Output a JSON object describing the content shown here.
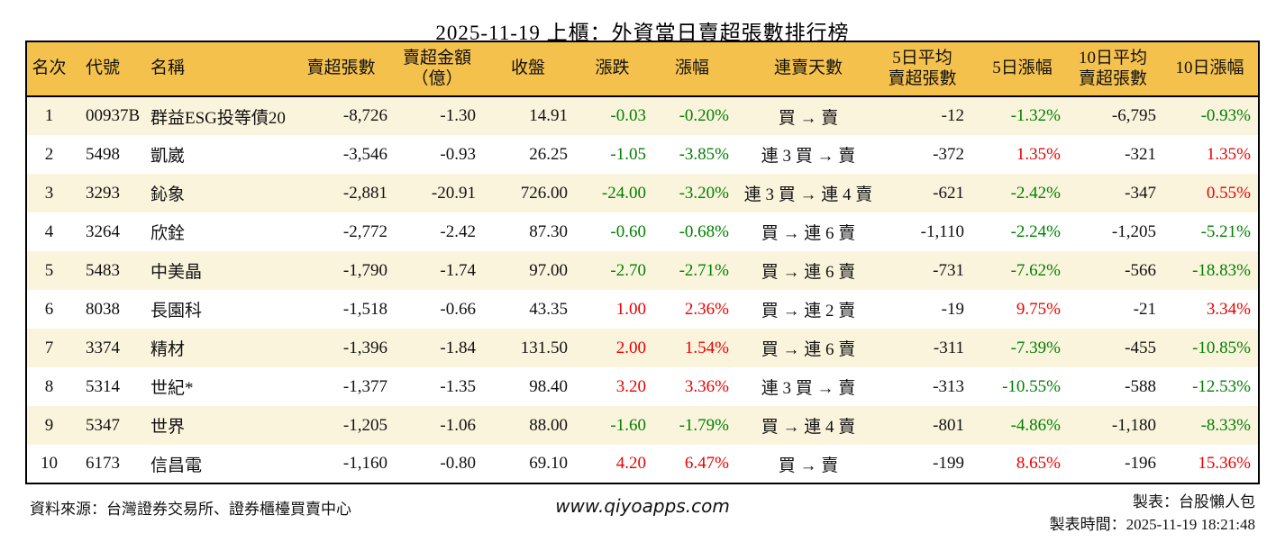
{
  "title": "2025-11-19 上櫃：外資當日賣超張數排行榜",
  "colors": {
    "header_bg": "#f5c14d",
    "row_alt_bg": "#fbf4dd",
    "up_red": "#ea0000",
    "down_green": "#008000",
    "border": "#000000"
  },
  "table": {
    "columns": [
      {
        "key": "rank",
        "label": "名次"
      },
      {
        "key": "code",
        "label": "代號"
      },
      {
        "key": "name",
        "label": "名稱"
      },
      {
        "key": "sell_volume",
        "label": "賣超張數"
      },
      {
        "key": "sell_amount",
        "label": "賣超金額\n（億）"
      },
      {
        "key": "close",
        "label": "收盤"
      },
      {
        "key": "change",
        "label": "漲跌"
      },
      {
        "key": "change_pct",
        "label": "漲幅"
      },
      {
        "key": "streak",
        "label": "連賣天數"
      },
      {
        "key": "avg5",
        "label": "5日平均\n賣超張數"
      },
      {
        "key": "pct5",
        "label": "5日漲幅"
      },
      {
        "key": "avg10",
        "label": "10日平均\n賣超張數"
      },
      {
        "key": "pct10",
        "label": "10日漲幅"
      }
    ],
    "colored_columns": [
      "change",
      "change_pct",
      "pct5",
      "pct10"
    ],
    "rows": [
      {
        "rank": "1",
        "code": "00937B",
        "name": "群益ESG投等債20",
        "sell_volume": "-8,726",
        "sell_amount": "-1.30",
        "close": "14.91",
        "change": "-0.03",
        "change_pct": "-0.20%",
        "streak": "買 → 賣",
        "avg5": "-12",
        "pct5": "-1.32%",
        "avg10": "-6,795",
        "pct10": "-0.93%"
      },
      {
        "rank": "2",
        "code": "5498",
        "name": "凱崴",
        "sell_volume": "-3,546",
        "sell_amount": "-0.93",
        "close": "26.25",
        "change": "-1.05",
        "change_pct": "-3.85%",
        "streak": "連 3 買 → 賣",
        "avg5": "-372",
        "pct5": "1.35%",
        "avg10": "-321",
        "pct10": "1.35%"
      },
      {
        "rank": "3",
        "code": "3293",
        "name": "鈊象",
        "sell_volume": "-2,881",
        "sell_amount": "-20.91",
        "close": "726.00",
        "change": "-24.00",
        "change_pct": "-3.20%",
        "streak": "連 3 買 → 連 4 賣",
        "avg5": "-621",
        "pct5": "-2.42%",
        "avg10": "-347",
        "pct10": "0.55%"
      },
      {
        "rank": "4",
        "code": "3264",
        "name": "欣銓",
        "sell_volume": "-2,772",
        "sell_amount": "-2.42",
        "close": "87.30",
        "change": "-0.60",
        "change_pct": "-0.68%",
        "streak": "買 → 連 6 賣",
        "avg5": "-1,110",
        "pct5": "-2.24%",
        "avg10": "-1,205",
        "pct10": "-5.21%"
      },
      {
        "rank": "5",
        "code": "5483",
        "name": "中美晶",
        "sell_volume": "-1,790",
        "sell_amount": "-1.74",
        "close": "97.00",
        "change": "-2.70",
        "change_pct": "-2.71%",
        "streak": "買 → 連 6 賣",
        "avg5": "-731",
        "pct5": "-7.62%",
        "avg10": "-566",
        "pct10": "-18.83%"
      },
      {
        "rank": "6",
        "code": "8038",
        "name": "長園科",
        "sell_volume": "-1,518",
        "sell_amount": "-0.66",
        "close": "43.35",
        "change": "1.00",
        "change_pct": "2.36%",
        "streak": "買 → 連 2 賣",
        "avg5": "-19",
        "pct5": "9.75%",
        "avg10": "-21",
        "pct10": "3.34%"
      },
      {
        "rank": "7",
        "code": "3374",
        "name": "精材",
        "sell_volume": "-1,396",
        "sell_amount": "-1.84",
        "close": "131.50",
        "change": "2.00",
        "change_pct": "1.54%",
        "streak": "買 → 連 6 賣",
        "avg5": "-311",
        "pct5": "-7.39%",
        "avg10": "-455",
        "pct10": "-10.85%"
      },
      {
        "rank": "8",
        "code": "5314",
        "name": "世紀*",
        "sell_volume": "-1,377",
        "sell_amount": "-1.35",
        "close": "98.40",
        "change": "3.20",
        "change_pct": "3.36%",
        "streak": "連 3 買 → 賣",
        "avg5": "-313",
        "pct5": "-10.55%",
        "avg10": "-588",
        "pct10": "-12.53%"
      },
      {
        "rank": "9",
        "code": "5347",
        "name": "世界",
        "sell_volume": "-1,205",
        "sell_amount": "-1.06",
        "close": "88.00",
        "change": "-1.60",
        "change_pct": "-1.79%",
        "streak": "買 → 連 4 賣",
        "avg5": "-801",
        "pct5": "-4.86%",
        "avg10": "-1,180",
        "pct10": "-8.33%"
      },
      {
        "rank": "10",
        "code": "6173",
        "name": "信昌電",
        "sell_volume": "-1,160",
        "sell_amount": "-0.80",
        "close": "69.10",
        "change": "4.20",
        "change_pct": "6.47%",
        "streak": "買 → 賣",
        "avg5": "-199",
        "pct5": "8.65%",
        "avg10": "-196",
        "pct10": "15.36%"
      }
    ]
  },
  "footer": {
    "source": "資料來源：台灣證券交易所、證券櫃檯買賣中心",
    "website": "www.qiyoapps.com",
    "author": "製表：台股懶人包",
    "generated": "製表時間：2025-11-19 18:21:48"
  }
}
